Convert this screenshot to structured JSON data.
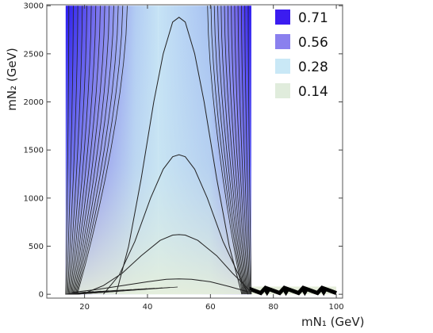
{
  "chart_data": {
    "type": "contour",
    "xlabel": "mN₁ (GeV)",
    "ylabel": "mN₂ (GeV)",
    "xlim": [
      8,
      102
    ],
    "ylim": [
      -40,
      3010
    ],
    "xticks": [
      20,
      40,
      60,
      80,
      100
    ],
    "yticks": [
      0,
      500,
      1000,
      1500,
      2000,
      2500,
      3000
    ],
    "legend_position": "top-right",
    "legend": [
      {
        "label": "0.71",
        "color": "#3b1cf0"
      },
      {
        "label": "0.56",
        "color": "#8a80ee"
      },
      {
        "label": "0.28",
        "color": "#c9e8f6"
      },
      {
        "label": "0.14",
        "color": "#e0ecdc"
      }
    ],
    "region": {
      "x_min": 14,
      "x_max": 73,
      "y_max": 3000,
      "tail_x_max": 100,
      "tail_y_max": 80
    },
    "contours": [
      {
        "level": "peak_2900",
        "x": [
          30,
          34,
          38,
          42,
          45,
          48,
          50,
          52,
          55,
          58,
          62,
          66,
          70
        ],
        "y": [
          0,
          500,
          1200,
          2000,
          2500,
          2830,
          2880,
          2830,
          2500,
          2000,
          1200,
          500,
          0
        ]
      },
      {
        "level": "peak_1450",
        "x": [
          26,
          31,
          36,
          41,
          45,
          48,
          50,
          52,
          55,
          59,
          64,
          69,
          72
        ],
        "y": [
          0,
          200,
          550,
          1000,
          1300,
          1430,
          1450,
          1430,
          1300,
          1000,
          550,
          200,
          0
        ]
      },
      {
        "level": "peak_620",
        "x": [
          20,
          26,
          32,
          38,
          44,
          48,
          50,
          52,
          56,
          62,
          67,
          71,
          73
        ],
        "y": [
          10,
          90,
          220,
          400,
          560,
          615,
          620,
          615,
          560,
          400,
          220,
          90,
          10
        ]
      },
      {
        "level": "peak_160",
        "x": [
          16,
          24,
          32,
          40,
          46,
          50,
          54,
          60,
          66,
          72
        ],
        "y": [
          20,
          50,
          90,
          130,
          155,
          160,
          155,
          130,
          80,
          25
        ]
      }
    ],
    "edge_contours_left_count": 14,
    "edge_contours_right_count": 13
  }
}
